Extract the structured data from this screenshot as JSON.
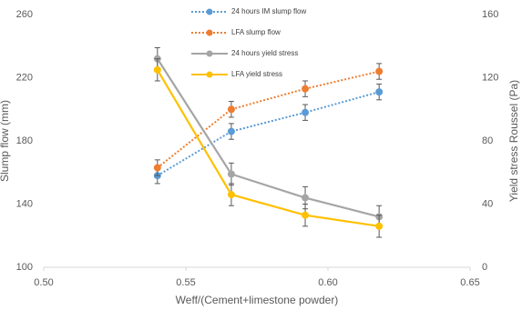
{
  "chart_data": {
    "type": "line",
    "x_label": "Weff/(Cement+limestone powder)",
    "y_label": "Slump flow (mm)",
    "y2_label": "Yield stress Roussel (Pa)",
    "xlim": [
      0.5,
      0.65
    ],
    "xticks": [
      {
        "value": 0.5,
        "label": "0.50"
      },
      0.55,
      {
        "value": 0.6,
        "label": "0.60"
      },
      0.65
    ],
    "ylim": [
      100,
      260
    ],
    "yticks": [
      100,
      140,
      180,
      220,
      260
    ],
    "y2lim": [
      0,
      160
    ],
    "y2ticks": [
      0,
      40,
      80,
      120,
      160
    ],
    "legend": "top",
    "series": [
      {
        "name": "24 hours IM slump flow",
        "color": "#5b9bd5",
        "dash": true,
        "x": [
          0.54,
          0.566,
          0.592,
          0.618
        ],
        "values": [
          158,
          186,
          198,
          211
        ],
        "errors": [
          5,
          5,
          5,
          5
        ]
      },
      {
        "name": "LFA slump flow",
        "color": "#ed7d31",
        "dash": true,
        "x": [
          0.54,
          0.566,
          0.592,
          0.618
        ],
        "values": [
          163,
          200,
          213,
          224
        ],
        "errors": [
          5,
          5,
          5,
          5
        ]
      },
      {
        "name": "24 hours yield stress",
        "color": "#a5a5a5",
        "dash": false,
        "axis": "y2",
        "x": [
          0.54,
          0.566,
          0.592,
          0.618
        ],
        "values": [
          132,
          59,
          44,
          32
        ],
        "errors": [
          7,
          7,
          7,
          7
        ]
      },
      {
        "name": "LFA yield stress",
        "color": "#ffc000",
        "dash": false,
        "axis": "y2",
        "x": [
          0.54,
          0.566,
          0.592,
          0.618
        ],
        "values": [
          125,
          46,
          33,
          26
        ],
        "errors": [
          7,
          7,
          7,
          7
        ]
      }
    ]
  }
}
